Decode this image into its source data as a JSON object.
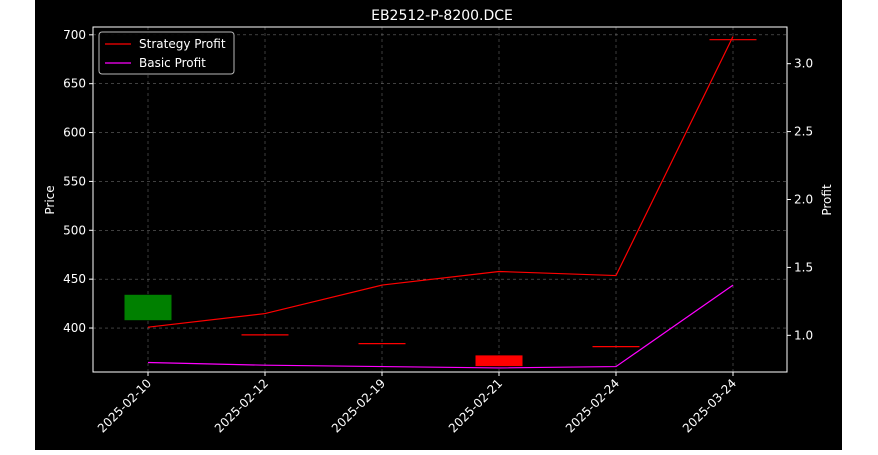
{
  "chart_data": {
    "type": "candlestick",
    "title": "EB2512-P-8200.DCE",
    "categories": [
      "2025-02-10",
      "2025-02-12",
      "2025-02-19",
      "2025-02-21",
      "2025-02-24",
      "2025-03-24"
    ],
    "left_axis": {
      "label": "Price",
      "ylim": [
        355,
        708
      ],
      "ticks": [
        400,
        450,
        500,
        550,
        600,
        650,
        700
      ]
    },
    "right_axis": {
      "label": "Profit",
      "ylim": [
        0.73,
        3.27
      ],
      "ticks": [
        1.0,
        1.5,
        2.0,
        2.5,
        3.0
      ],
      "tick_labels": [
        "1.0",
        "1.5",
        "2.0",
        "2.5",
        "3.0"
      ]
    },
    "candles": [
      {
        "open": 408,
        "close": 434,
        "high": 434,
        "low": 408,
        "direction": "up"
      },
      {
        "open": 393,
        "close": 393,
        "high": 393,
        "low": 393,
        "direction": "flat"
      },
      {
        "open": 384,
        "close": 384,
        "high": 384,
        "low": 384,
        "direction": "flat"
      },
      {
        "open": 372,
        "close": 361,
        "high": 372,
        "low": 361,
        "direction": "down"
      },
      {
        "open": 381,
        "close": 381,
        "high": 381,
        "low": 381,
        "direction": "flat"
      },
      {
        "open": 695,
        "close": 695,
        "high": 695,
        "low": 695,
        "direction": "flat"
      }
    ],
    "series": [
      {
        "name": "Strategy Profit",
        "color": "#ff0000",
        "axis": "right",
        "values": [
          1.06,
          1.16,
          1.37,
          1.47,
          1.44,
          3.2
        ]
      },
      {
        "name": "Basic Profit",
        "color": "#ff00ff",
        "axis": "right",
        "values": [
          0.8,
          0.78,
          0.77,
          0.76,
          0.77,
          1.37
        ]
      }
    ],
    "colors": {
      "up": "#008000",
      "down": "#ff0000",
      "background": "#000000",
      "grid": "#808080"
    },
    "grid": true,
    "legend": "upper-left"
  }
}
